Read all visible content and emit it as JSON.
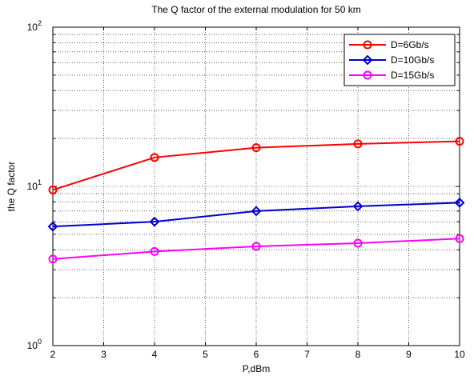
{
  "chart_data": {
    "type": "line",
    "title": "The Q factor of the external modulation for 50 km",
    "xlabel": "P,dBm",
    "ylabel": "the Q factor",
    "x": [
      2,
      4,
      6,
      8,
      10
    ],
    "xlim": [
      2,
      10
    ],
    "xticks": [
      "2",
      "3",
      "4",
      "5",
      "6",
      "7",
      "8",
      "9",
      "10"
    ],
    "yscale": "log",
    "ylim": [
      1,
      100
    ],
    "yticks": [
      {
        "base": "10",
        "exp": "0"
      },
      {
        "base": "10",
        "exp": "1"
      },
      {
        "base": "10",
        "exp": "2"
      }
    ],
    "grid": true,
    "legend": "top-right",
    "series": [
      {
        "name": "D=6Gb/s",
        "color": "#ff0000",
        "marker": "circle",
        "values": [
          9.5,
          15.2,
          17.5,
          18.5,
          19.2
        ]
      },
      {
        "name": "D=10Gb/s",
        "color": "#0000cc",
        "marker": "diamond",
        "values": [
          5.6,
          6.0,
          7.0,
          7.5,
          7.9
        ]
      },
      {
        "name": "D=15Gb/s",
        "color": "#ff00ff",
        "marker": "circle",
        "values": [
          3.5,
          3.9,
          4.2,
          4.4,
          4.7
        ]
      }
    ]
  }
}
